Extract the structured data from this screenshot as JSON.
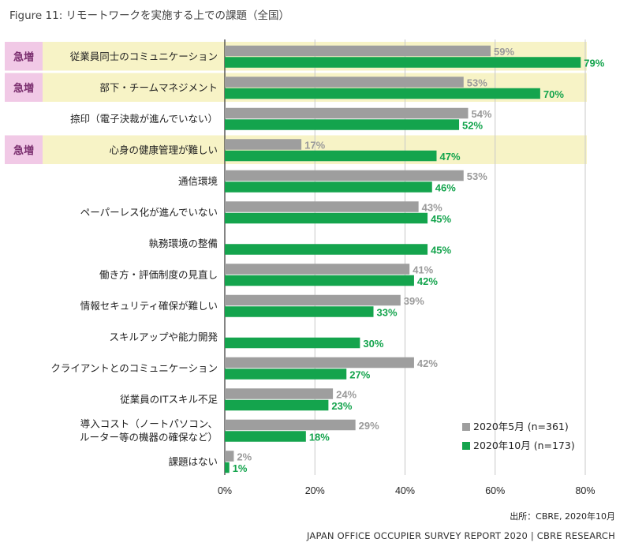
{
  "header": {
    "title": "Figure 11: リモートワークを実施する上での課題（全国）"
  },
  "chart_data": {
    "type": "bar",
    "orientation": "horizontal",
    "categories": [
      "従業員同士のコミュニケーション",
      "部下・チームマネジメント",
      "捺印（電子決裁が進んでいない）",
      "心身の健康管理が難しい",
      "通信環境",
      "ペーパーレス化が進んでいない",
      "執務環境の整備",
      "働き方・評価制度の見直し",
      "情報セキュリティ確保が難しい",
      "スキルアップや能力開発",
      "クライアントとのコミュニケーション",
      "従業員のITスキル不足",
      "導入コスト（ノートパソコン、\nルーター等の機器の確保など）",
      "課題はない"
    ],
    "series": [
      {
        "name": "2020年5月 (n=361)",
        "color": "#9e9e9e",
        "values": [
          59,
          53,
          54,
          17,
          53,
          43,
          null,
          41,
          39,
          null,
          42,
          24,
          29,
          2
        ]
      },
      {
        "name": "2020年10月 (n=173)",
        "color": "#14a44d",
        "values": [
          79,
          70,
          52,
          47,
          46,
          45,
          45,
          42,
          33,
          30,
          27,
          23,
          18,
          1
        ]
      }
    ],
    "value_suffix": "%",
    "highlight": {
      "label": "急増",
      "categories": [
        0,
        1,
        3
      ],
      "color": "#f7f3c6",
      "tag_color": "#f1c9e6"
    },
    "xlim": [
      0,
      80
    ],
    "xticks": [
      "0%",
      "20%",
      "40%",
      "60%",
      "80%"
    ],
    "grid": true,
    "legend_position": "bottom-right"
  },
  "footer": {
    "source": "出所：CBRE, 2020年10月",
    "report": "JAPAN OFFICE OCCUPIER SURVEY REPORT 2020 | CBRE RESEARCH"
  }
}
